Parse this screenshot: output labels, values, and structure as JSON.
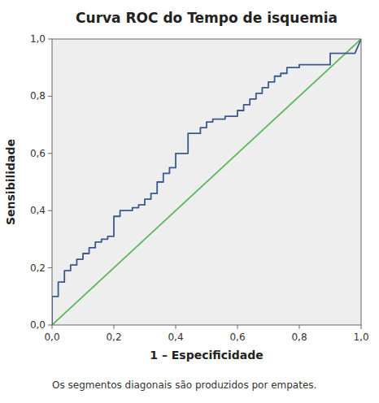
{
  "chart_data": {
    "type": "line",
    "title": "Curva ROC do Tempo de isquemia",
    "x_label": "1 – Especificidade",
    "y_label": "Sensibilidade",
    "footnote": "Os segmentos diagonais são produzidos por empates.",
    "xlim": [
      0.0,
      1.0
    ],
    "ylim": [
      0.0,
      1.0
    ],
    "xticks": [
      {
        "value": 0.0,
        "label": "0,0"
      },
      {
        "value": 0.2,
        "label": "0,2"
      },
      {
        "value": 0.4,
        "label": "0,4"
      },
      {
        "value": 0.6,
        "label": "0,6"
      },
      {
        "value": 0.8,
        "label": "0,8"
      },
      {
        "value": 1.0,
        "label": "1,0"
      }
    ],
    "yticks": [
      {
        "value": 0.0,
        "label": "0,0"
      },
      {
        "value": 0.2,
        "label": "0,2"
      },
      {
        "value": 0.4,
        "label": "0,4"
      },
      {
        "value": 0.6,
        "label": "0,6"
      },
      {
        "value": 0.8,
        "label": "0,8"
      },
      {
        "value": 1.0,
        "label": "1,0"
      }
    ],
    "grid": false,
    "series": [
      {
        "color": "#5cb85c",
        "x": [
          0,
          1
        ],
        "values": [
          0,
          1
        ]
      },
      {
        "color": "#3a5a8c",
        "x": [
          0.0,
          0.0,
          0.0,
          0.02,
          0.02,
          0.04,
          0.04,
          0.06,
          0.06,
          0.08,
          0.08,
          0.1,
          0.1,
          0.12,
          0.12,
          0.14,
          0.14,
          0.16,
          0.16,
          0.18,
          0.18,
          0.2,
          0.2,
          0.22,
          0.22,
          0.24,
          0.26,
          0.26,
          0.28,
          0.28,
          0.3,
          0.3,
          0.32,
          0.32,
          0.34,
          0.34,
          0.36,
          0.36,
          0.38,
          0.38,
          0.4,
          0.4,
          0.42,
          0.44,
          0.44,
          0.46,
          0.48,
          0.48,
          0.5,
          0.5,
          0.52,
          0.52,
          0.54,
          0.54,
          0.56,
          0.56,
          0.58,
          0.58,
          0.6,
          0.6,
          0.62,
          0.62,
          0.64,
          0.64,
          0.66,
          0.66,
          0.68,
          0.68,
          0.7,
          0.7,
          0.72,
          0.72,
          0.74,
          0.74,
          0.76,
          0.76,
          0.78,
          0.8,
          0.8,
          0.82,
          0.84,
          0.86,
          0.88,
          0.9,
          0.9,
          0.92,
          0.94,
          0.96,
          0.98,
          1.0
        ],
        "values": [
          0.0,
          0.07,
          0.1,
          0.1,
          0.15,
          0.15,
          0.19,
          0.19,
          0.21,
          0.21,
          0.23,
          0.23,
          0.25,
          0.25,
          0.27,
          0.27,
          0.29,
          0.29,
          0.3,
          0.3,
          0.31,
          0.31,
          0.38,
          0.38,
          0.4,
          0.4,
          0.4,
          0.41,
          0.41,
          0.42,
          0.42,
          0.44,
          0.44,
          0.46,
          0.46,
          0.5,
          0.5,
          0.53,
          0.53,
          0.55,
          0.55,
          0.6,
          0.6,
          0.6,
          0.67,
          0.67,
          0.67,
          0.69,
          0.69,
          0.71,
          0.71,
          0.72,
          0.72,
          0.72,
          0.72,
          0.73,
          0.73,
          0.73,
          0.73,
          0.75,
          0.75,
          0.77,
          0.77,
          0.79,
          0.79,
          0.81,
          0.81,
          0.83,
          0.83,
          0.85,
          0.85,
          0.87,
          0.87,
          0.88,
          0.88,
          0.9,
          0.9,
          0.9,
          0.91,
          0.91,
          0.91,
          0.91,
          0.91,
          0.91,
          0.95,
          0.95,
          0.95,
          0.95,
          0.95,
          1.0
        ]
      }
    ]
  }
}
